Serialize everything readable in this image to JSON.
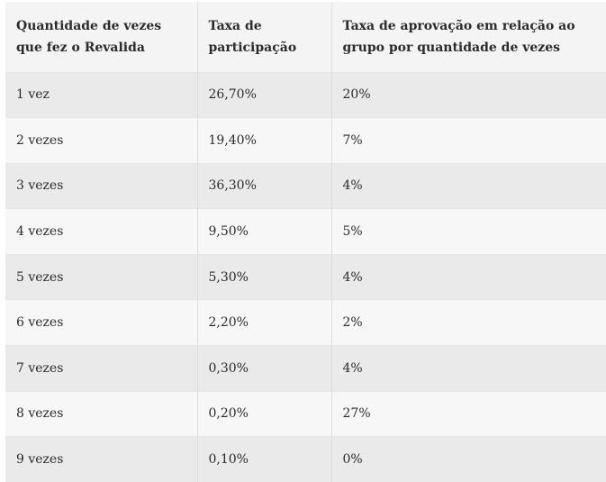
{
  "table": {
    "headers": [
      "Quantidade de vezes que fez o Revalida",
      "Taxa de participação",
      "Taxa de aprovação em relação ao grupo por quantidade de vezes"
    ],
    "rows": [
      [
        "1 vez",
        "26,70%",
        "20%"
      ],
      [
        "2 vezes",
        "19,40%",
        "7%"
      ],
      [
        "3 vezes",
        "36,30%",
        "4%"
      ],
      [
        "4 vezes",
        "9,50%",
        "5%"
      ],
      [
        "5 vezes",
        "5,30%",
        "4%"
      ],
      [
        "6 vezes",
        "2,20%",
        "2%"
      ],
      [
        "7 vezes",
        "0,30%",
        "4%"
      ],
      [
        "8 vezes",
        "0,20%",
        "27%"
      ],
      [
        "9 vezes",
        "0,10%",
        "0%"
      ]
    ]
  }
}
